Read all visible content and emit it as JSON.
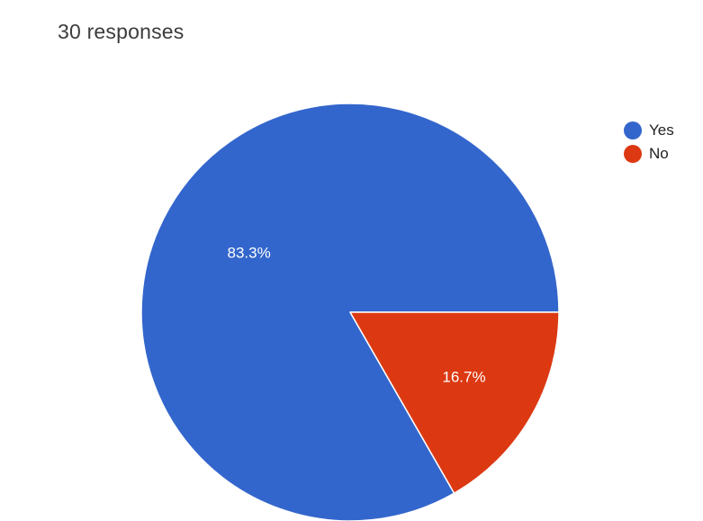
{
  "header": {
    "responses_text": "30 responses"
  },
  "chart_data": {
    "type": "pie",
    "categories": [
      "Yes",
      "No"
    ],
    "values": [
      83.3,
      16.7
    ],
    "value_labels": [
      "83.3%",
      "16.7%"
    ],
    "colors": [
      "#3366cc",
      "#dc3912"
    ],
    "start_angle_deg": 0,
    "direction": "counterclockwise",
    "legend_placement": "right"
  },
  "legend": {
    "items": [
      {
        "label": "Yes",
        "color": "#3366cc"
      },
      {
        "label": "No",
        "color": "#dc3912"
      }
    ]
  }
}
